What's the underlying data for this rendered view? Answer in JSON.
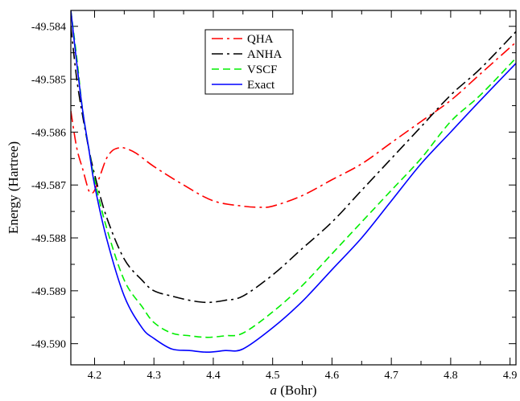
{
  "chart_data": {
    "type": "line",
    "title": "",
    "xlabel_italic": "a",
    "xlabel_rest": " (Bohr)",
    "ylabel": "Energy (Hartree)",
    "xlim": [
      4.16,
      4.91
    ],
    "ylim": [
      -49.5904,
      -49.5837
    ],
    "x_ticks": [
      4.2,
      4.3,
      4.4,
      4.5,
      4.6,
      4.7,
      4.8,
      4.9
    ],
    "x_tick_labels": [
      "4.2",
      "4.3",
      "4.4",
      "4.5",
      "4.6",
      "4.7",
      "4.8",
      "4.9"
    ],
    "y_ticks": [
      -49.59,
      -49.589,
      -49.588,
      -49.587,
      -49.586,
      -49.585,
      -49.584
    ],
    "y_tick_labels": [
      "-49.590",
      "-49.589",
      "-49.588",
      "-49.587",
      "-49.586",
      "-49.585",
      "-49.584"
    ],
    "grid": false,
    "legend_position": "top-center",
    "series": [
      {
        "name": "QHA",
        "color": "#ff0000",
        "dash": "dash-dot",
        "x": [
          4.16,
          4.17,
          4.18,
          4.19,
          4.195,
          4.2,
          4.21,
          4.22,
          4.23,
          4.24,
          4.25,
          4.27,
          4.3,
          4.35,
          4.4,
          4.45,
          4.475,
          4.5,
          4.55,
          4.6,
          4.65,
          4.7,
          4.75,
          4.8,
          4.85,
          4.9,
          4.91
        ],
        "y": [
          -49.5856,
          -49.5863,
          -49.5867,
          -49.5871,
          -49.58715,
          -49.5871,
          -49.5868,
          -49.5865,
          -49.58635,
          -49.5863,
          -49.5863,
          -49.5864,
          -49.58665,
          -49.587,
          -49.5873,
          -49.5874,
          -49.58742,
          -49.5874,
          -49.5872,
          -49.5869,
          -49.5866,
          -49.5862,
          -49.5858,
          -49.5854,
          -49.5849,
          -49.5844,
          -49.5843
        ]
      },
      {
        "name": "ANHA",
        "color": "#000000",
        "dash": "dash-dot",
        "x": [
          4.16,
          4.17,
          4.18,
          4.19,
          4.2,
          4.22,
          4.25,
          4.28,
          4.3,
          4.33,
          4.36,
          4.39,
          4.42,
          4.45,
          4.5,
          4.55,
          4.6,
          4.65,
          4.7,
          4.75,
          4.8,
          4.85,
          4.91
        ],
        "y": [
          -49.584,
          -49.585,
          -49.5857,
          -49.5863,
          -49.5868,
          -49.5876,
          -49.5884,
          -49.5888,
          -49.589,
          -49.5891,
          -49.58918,
          -49.58922,
          -49.58918,
          -49.5891,
          -49.5887,
          -49.5882,
          -49.5877,
          -49.5871,
          -49.5865,
          -49.5859,
          -49.5853,
          -49.5848,
          -49.5841
        ]
      },
      {
        "name": "VSCF",
        "color": "#00ee00",
        "dash": "dashed",
        "x": [
          4.16,
          4.17,
          4.18,
          4.19,
          4.2,
          4.22,
          4.25,
          4.28,
          4.3,
          4.33,
          4.36,
          4.39,
          4.42,
          4.45,
          4.5,
          4.55,
          4.6,
          4.65,
          4.7,
          4.75,
          4.8,
          4.85,
          4.91
        ],
        "y": [
          -49.5837,
          -49.5846,
          -49.5856,
          -49.5863,
          -49.5869,
          -49.5878,
          -49.5888,
          -49.5893,
          -49.5896,
          -49.5898,
          -49.58985,
          -49.58988,
          -49.58985,
          -49.5898,
          -49.5894,
          -49.5889,
          -49.5883,
          -49.5877,
          -49.5871,
          -49.5865,
          -49.5858,
          -49.5853,
          -49.5846
        ]
      },
      {
        "name": "Exact",
        "color": "#0000ff",
        "dash": "solid",
        "x": [
          4.16,
          4.17,
          4.18,
          4.19,
          4.2,
          4.22,
          4.25,
          4.28,
          4.3,
          4.33,
          4.36,
          4.39,
          4.42,
          4.45,
          4.5,
          4.55,
          4.6,
          4.65,
          4.7,
          4.75,
          4.8,
          4.85,
          4.91
        ],
        "y": [
          -49.5837,
          -49.5847,
          -49.5856,
          -49.5863,
          -49.587,
          -49.588,
          -49.5891,
          -49.5897,
          -49.5899,
          -49.5901,
          -49.59013,
          -49.59016,
          -49.59013,
          -49.5901,
          -49.5897,
          -49.5892,
          -49.5886,
          -49.588,
          -49.5873,
          -49.5866,
          -49.586,
          -49.5854,
          -49.5847
        ]
      }
    ]
  }
}
